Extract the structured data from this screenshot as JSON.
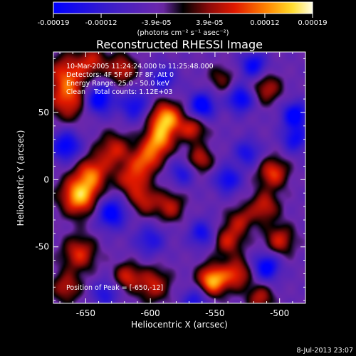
{
  "chart_data": {
    "type": "heatmap",
    "title": "Reconstructed RHESSI Image",
    "xlabel": "Heliocentric X (arcsec)",
    "ylabel": "Heliocentric Y (arcsec)",
    "xlim": [
      -675,
      -480
    ],
    "ylim": [
      -92,
      95
    ],
    "xticks": [
      -650,
      -600,
      -550,
      -500
    ],
    "yticks": [
      50,
      0,
      -50
    ],
    "xticklabels": [
      "-650",
      "-600",
      "-550",
      "-500"
    ],
    "yticklabels": [
      "50",
      "0",
      "-50"
    ],
    "colorbar": {
      "range": [
        -0.00019,
        0.00019
      ],
      "ticks": [
        -0.00019,
        -0.00012,
        -3.9e-05,
        3.9e-05,
        0.00012,
        0.00019
      ],
      "ticklabels": [
        "-0.00019",
        "-0.00012",
        "-3.9e-05",
        "3.9e-05",
        "0.00012",
        "0.00019"
      ],
      "unit_label": "(photons cm⁻² s⁻¹ asec⁻²)"
    },
    "annotations": [
      "10-Mar-2005 11:24:24.000 to 11:25:48.000",
      "Detectors: 4F 5F 6F 7F 8F, Att 0",
      "Energy Range: 25.0 - 50.0 keV",
      "Clean    Total counts: 1.12E+03"
    ],
    "peak_label": "Position of Peak = [-650,-12]",
    "peak": [
      -650,
      -12
    ],
    "blobs": [
      {
        "x": -655,
        "y": -12,
        "value": 0.00019,
        "sigma": 10
      },
      {
        "x": -645,
        "y": 5,
        "value": 0.00013,
        "sigma": 9
      },
      {
        "x": -628,
        "y": 22,
        "value": 0.00011,
        "sigma": 9
      },
      {
        "x": -615,
        "y": 0,
        "value": 0.00011,
        "sigma": 8
      },
      {
        "x": -588,
        "y": 45,
        "value": 0.00019,
        "sigma": 9
      },
      {
        "x": -594,
        "y": 28,
        "value": 0.00015,
        "sigma": 8
      },
      {
        "x": -604,
        "y": 14,
        "value": 0.00013,
        "sigma": 8
      },
      {
        "x": -605,
        "y": -15,
        "value": 0.0001,
        "sigma": 8
      },
      {
        "x": -663,
        "y": 60,
        "value": 0.00013,
        "sigma": 11
      },
      {
        "x": -665,
        "y": 80,
        "value": 0.00011,
        "sigma": 10
      },
      {
        "x": -645,
        "y": 88,
        "value": 0.0001,
        "sigma": 8
      },
      {
        "x": -622,
        "y": 82,
        "value": 0.00011,
        "sigma": 8
      },
      {
        "x": -567,
        "y": 38,
        "value": 0.00011,
        "sigma": 7
      },
      {
        "x": -562,
        "y": 15,
        "value": 0.00011,
        "sigma": 7
      },
      {
        "x": -585,
        "y": -20,
        "value": 0.0001,
        "sigma": 8
      },
      {
        "x": -540,
        "y": -45,
        "value": 0.00011,
        "sigma": 8
      },
      {
        "x": -530,
        "y": -30,
        "value": 9e-05,
        "sigma": 7
      },
      {
        "x": -552,
        "y": -75,
        "value": 0.00019,
        "sigma": 8
      },
      {
        "x": -533,
        "y": -70,
        "value": 0.00012,
        "sigma": 8
      },
      {
        "x": -598,
        "y": -78,
        "value": 0.00011,
        "sigma": 9
      },
      {
        "x": -618,
        "y": -72,
        "value": 0.00011,
        "sigma": 7
      },
      {
        "x": -655,
        "y": -55,
        "value": 0.00012,
        "sigma": 9
      },
      {
        "x": -665,
        "y": -80,
        "value": 0.0001,
        "sigma": 8
      },
      {
        "x": -505,
        "y": 5,
        "value": 0.00013,
        "sigma": 8
      },
      {
        "x": -512,
        "y": -20,
        "value": 0.00011,
        "sigma": 8
      },
      {
        "x": -500,
        "y": -45,
        "value": 0.00011,
        "sigma": 8
      },
      {
        "x": -510,
        "y": 68,
        "value": 0.0001,
        "sigma": 8
      },
      {
        "x": -515,
        "y": -88,
        "value": 0.0001,
        "sigma": 7
      },
      {
        "x": -545,
        "y": 75,
        "value": 7e-05,
        "sigma": 7
      },
      {
        "x": -640,
        "y": 60,
        "value": -0.00017,
        "sigma": 8
      },
      {
        "x": -612,
        "y": 55,
        "value": -0.00012,
        "sigma": 8
      },
      {
        "x": -630,
        "y": -25,
        "value": -0.00016,
        "sigma": 8
      },
      {
        "x": -665,
        "y": 25,
        "value": -0.00015,
        "sigma": 8
      },
      {
        "x": -560,
        "y": 55,
        "value": -0.00017,
        "sigma": 7
      },
      {
        "x": -530,
        "y": 60,
        "value": -0.00015,
        "sigma": 7
      },
      {
        "x": -488,
        "y": 48,
        "value": -0.00016,
        "sigma": 7
      },
      {
        "x": -488,
        "y": 30,
        "value": -0.00012,
        "sigma": 7
      },
      {
        "x": -560,
        "y": -40,
        "value": -0.00012,
        "sigma": 7
      },
      {
        "x": -540,
        "y": 0,
        "value": -0.00013,
        "sigma": 7
      },
      {
        "x": -525,
        "y": 20,
        "value": -0.00011,
        "sigma": 7
      },
      {
        "x": -510,
        "y": -65,
        "value": -0.00016,
        "sigma": 7
      },
      {
        "x": -520,
        "y": 85,
        "value": -0.00014,
        "sigma": 7
      },
      {
        "x": -590,
        "y": 75,
        "value": -0.00011,
        "sigma": 7
      },
      {
        "x": -565,
        "y": -90,
        "value": -0.00011,
        "sigma": 7
      },
      {
        "x": -635,
        "y": -85,
        "value": -0.0001,
        "sigma": 7
      },
      {
        "x": -575,
        "y": 5,
        "value": -0.0001,
        "sigma": 7
      },
      {
        "x": -600,
        "y": -45,
        "value": -0.0001,
        "sigma": 8
      }
    ]
  },
  "footer": {
    "timestamp": "8-Jul-2013 23:07"
  }
}
